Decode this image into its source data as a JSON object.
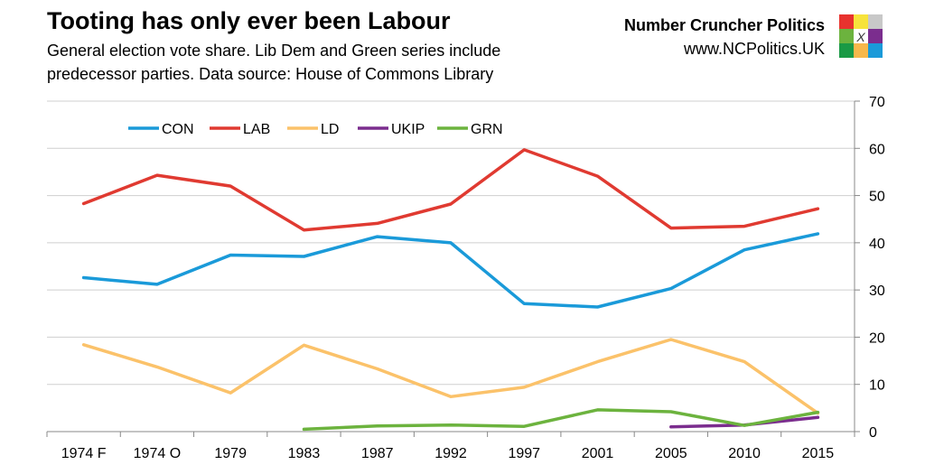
{
  "header": {
    "title": "Tooting has only ever been Labour",
    "subtitle": "General election vote share. Lib Dem and Green series include predecessor parties. Data source: House of Commons Library"
  },
  "brand": {
    "name": "Number Cruncher Politics",
    "url": "www.NCPolitics.UK",
    "logo_mark": "X",
    "logo_colors": [
      "#e8322e",
      "#f7e33c",
      "#c8c8c8",
      "#6cb33e",
      "#ffffff",
      "#7b2d8e",
      "#1a9a45",
      "#f7b84b",
      "#1a9ad9"
    ]
  },
  "chart_data": {
    "type": "line",
    "categories": [
      "1974 F",
      "1974 O",
      "1979",
      "1983",
      "1987",
      "1992",
      "1997",
      "2001",
      "2005",
      "2010",
      "2015"
    ],
    "ylim": [
      0,
      70
    ],
    "yticks": [
      0,
      10,
      20,
      30,
      40,
      50,
      60,
      70
    ],
    "y_axis_side": "right",
    "grid": true,
    "legend_position": "top-left",
    "series": [
      {
        "name": "CON",
        "color": "#1a9ad9",
        "values": [
          32.6,
          31.2,
          37.4,
          37.1,
          41.3,
          40.0,
          27.1,
          26.4,
          30.3,
          38.5,
          41.9
        ]
      },
      {
        "name": "LAB",
        "color": "#e03a31",
        "values": [
          48.3,
          54.3,
          52.0,
          42.7,
          44.1,
          48.2,
          59.7,
          54.1,
          43.1,
          43.5,
          47.2
        ]
      },
      {
        "name": "LD",
        "color": "#fbc26a",
        "values": [
          18.4,
          13.7,
          8.2,
          18.3,
          13.3,
          7.4,
          9.4,
          14.8,
          19.5,
          14.8,
          3.9
        ]
      },
      {
        "name": "UKIP",
        "color": "#7b2d8e",
        "values": [
          null,
          null,
          null,
          null,
          null,
          null,
          null,
          null,
          1.0,
          1.4,
          3.0
        ]
      },
      {
        "name": "GRN",
        "color": "#6cb33e",
        "values": [
          null,
          null,
          null,
          0.5,
          1.2,
          1.4,
          1.1,
          4.6,
          4.2,
          1.3,
          4.1
        ]
      }
    ]
  }
}
